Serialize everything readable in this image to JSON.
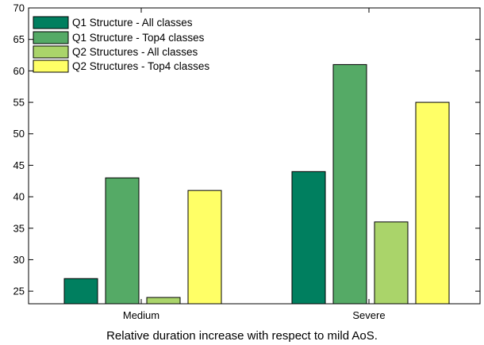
{
  "chart_data": {
    "type": "bar",
    "categories": [
      "Medium",
      "Severe"
    ],
    "series": [
      {
        "name": "Q1 Structure - All classes",
        "values": [
          27,
          44
        ],
        "color": "#007f5f"
      },
      {
        "name": "Q1 Structure - Top4 classes",
        "values": [
          43,
          61
        ],
        "color": "#55aa66"
      },
      {
        "name": "Q2 Structures - All classes",
        "values": [
          24,
          36
        ],
        "color": "#aad46a"
      },
      {
        "name": "Q2 Structures - Top4 classes",
        "values": [
          41,
          55
        ],
        "color": "#ffff66"
      }
    ],
    "xlabel": "Relative duration increase with respect to mild AoS.",
    "ylabel": "",
    "ylim": [
      23,
      70
    ],
    "yticks": [
      25,
      30,
      35,
      40,
      45,
      50,
      55,
      60,
      65,
      70
    ],
    "legend_position": "top-left",
    "grid": false
  }
}
